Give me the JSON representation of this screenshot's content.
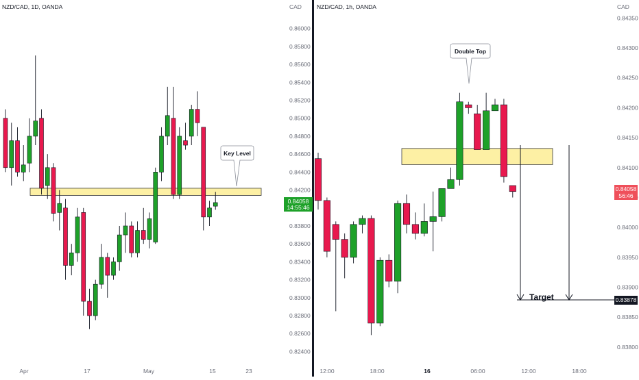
{
  "left": {
    "title": "NZD/CAD, 1D, OANDA",
    "currency": "CAD",
    "price_tag": "0.84058",
    "countdown": "14:55:46",
    "callout": "Key Level",
    "time_labels": [
      "Apr",
      "17",
      "May",
      "15",
      "23"
    ]
  },
  "right": {
    "title": "NZD/CAD, 1h, OANDA",
    "currency": "CAD",
    "price_tag": "0.84058",
    "countdown": "56:46",
    "callout": "Double Top",
    "target_label": "Target",
    "target_value": "0.83878",
    "time_labels": [
      "12:00",
      "18:00",
      "16",
      "06:00",
      "12:00",
      "18:00"
    ]
  },
  "colors": {
    "bull": "#1ea129",
    "bear": "#e8194e",
    "zone": "#fdf0a4",
    "zone_border": "#3b3b3b",
    "tag_left": "#1ea129",
    "tag_right": "#ef4f5a"
  },
  "chart_data": [
    {
      "type": "candlestick",
      "title": "NZD/CAD, 1D, OANDA",
      "ylabel": "CAD",
      "y_ticks": [
        "0.86000",
        "0.85800",
        "0.85600",
        "0.85400",
        "0.85200",
        "0.85000",
        "0.84800",
        "0.84600",
        "0.84400",
        "0.84200",
        "0.84000",
        "0.83800",
        "0.83600",
        "0.83400",
        "0.83200",
        "0.83000",
        "0.82800",
        "0.82600",
        "0.82400"
      ],
      "ylim": [
        0.8235,
        0.8615
      ],
      "x_labels": [
        "Apr",
        "17",
        "May",
        "15",
        "23"
      ],
      "zone": [
        0.8414,
        0.8422
      ],
      "last_price": 0.84058,
      "candles": [
        {
          "o": 0.85,
          "h": 0.851,
          "l": 0.844,
          "c": 0.8445
        },
        {
          "o": 0.8445,
          "h": 0.8495,
          "l": 0.8425,
          "c": 0.8475
        },
        {
          "o": 0.8475,
          "h": 0.849,
          "l": 0.8435,
          "c": 0.844
        },
        {
          "o": 0.844,
          "h": 0.847,
          "l": 0.843,
          "c": 0.8448
        },
        {
          "o": 0.845,
          "h": 0.85,
          "l": 0.844,
          "c": 0.848
        },
        {
          "o": 0.848,
          "h": 0.857,
          "l": 0.847,
          "c": 0.8497
        },
        {
          "o": 0.85,
          "h": 0.851,
          "l": 0.8415,
          "c": 0.8422
        },
        {
          "o": 0.8425,
          "h": 0.846,
          "l": 0.841,
          "c": 0.8445
        },
        {
          "o": 0.8445,
          "h": 0.845,
          "l": 0.8385,
          "c": 0.8394
        },
        {
          "o": 0.8395,
          "h": 0.842,
          "l": 0.8375,
          "c": 0.8405
        },
        {
          "o": 0.84,
          "h": 0.841,
          "l": 0.832,
          "c": 0.8336
        },
        {
          "o": 0.8336,
          "h": 0.836,
          "l": 0.8325,
          "c": 0.835
        },
        {
          "o": 0.835,
          "h": 0.84,
          "l": 0.834,
          "c": 0.839
        },
        {
          "o": 0.8395,
          "h": 0.84,
          "l": 0.828,
          "c": 0.8296
        },
        {
          "o": 0.8296,
          "h": 0.831,
          "l": 0.8265,
          "c": 0.828
        },
        {
          "o": 0.828,
          "h": 0.832,
          "l": 0.8275,
          "c": 0.8315
        },
        {
          "o": 0.8315,
          "h": 0.836,
          "l": 0.831,
          "c": 0.8345
        },
        {
          "o": 0.8345,
          "h": 0.835,
          "l": 0.83,
          "c": 0.8325
        },
        {
          "o": 0.8325,
          "h": 0.8345,
          "l": 0.832,
          "c": 0.834
        },
        {
          "o": 0.834,
          "h": 0.838,
          "l": 0.833,
          "c": 0.837
        },
        {
          "o": 0.837,
          "h": 0.8395,
          "l": 0.835,
          "c": 0.838
        },
        {
          "o": 0.838,
          "h": 0.8385,
          "l": 0.8345,
          "c": 0.835
        },
        {
          "o": 0.835,
          "h": 0.8385,
          "l": 0.8345,
          "c": 0.8375
        },
        {
          "o": 0.8375,
          "h": 0.84,
          "l": 0.836,
          "c": 0.8365
        },
        {
          "o": 0.8365,
          "h": 0.8395,
          "l": 0.8355,
          "c": 0.8388
        },
        {
          "o": 0.8362,
          "h": 0.8445,
          "l": 0.836,
          "c": 0.844
        },
        {
          "o": 0.844,
          "h": 0.849,
          "l": 0.843,
          "c": 0.848
        },
        {
          "o": 0.848,
          "h": 0.8535,
          "l": 0.847,
          "c": 0.8503
        },
        {
          "o": 0.85,
          "h": 0.8535,
          "l": 0.841,
          "c": 0.8415
        },
        {
          "o": 0.8415,
          "h": 0.849,
          "l": 0.841,
          "c": 0.848
        },
        {
          "o": 0.8475,
          "h": 0.8495,
          "l": 0.8465,
          "c": 0.847
        },
        {
          "o": 0.848,
          "h": 0.8515,
          "l": 0.847,
          "c": 0.851
        },
        {
          "o": 0.851,
          "h": 0.853,
          "l": 0.848,
          "c": 0.8495
        },
        {
          "o": 0.849,
          "h": 0.849,
          "l": 0.8375,
          "c": 0.839
        },
        {
          "o": 0.839,
          "h": 0.8408,
          "l": 0.838,
          "c": 0.84
        },
        {
          "o": 0.8402,
          "h": 0.8418,
          "l": 0.8398,
          "c": 0.8406
        }
      ]
    },
    {
      "type": "candlestick",
      "title": "NZD/CAD, 1h, OANDA",
      "ylabel": "CAD",
      "y_ticks": [
        "0.84350",
        "0.84300",
        "0.84250",
        "0.84200",
        "0.84150",
        "0.84100",
        "0.84050",
        "0.84000",
        "0.83950",
        "0.83900",
        "0.83850",
        "0.83800"
      ],
      "ylim": [
        0.83785,
        0.84355
      ],
      "x_labels": [
        "12:00",
        "18:00",
        "16",
        "06:00",
        "12:00",
        "18:00"
      ],
      "zone": [
        0.84105,
        0.84132
      ],
      "last_price": 0.84058,
      "target": 0.83878,
      "candles": [
        {
          "o": 0.84115,
          "h": 0.84125,
          "l": 0.8403,
          "c": 0.84045
        },
        {
          "o": 0.84045,
          "h": 0.8405,
          "l": 0.8395,
          "c": 0.8396
        },
        {
          "o": 0.84005,
          "h": 0.8401,
          "l": 0.8386,
          "c": 0.8398
        },
        {
          "o": 0.8398,
          "h": 0.8399,
          "l": 0.83915,
          "c": 0.8395
        },
        {
          "o": 0.8395,
          "h": 0.8401,
          "l": 0.8394,
          "c": 0.84005
        },
        {
          "o": 0.84005,
          "h": 0.8402,
          "l": 0.8399,
          "c": 0.84015
        },
        {
          "o": 0.84015,
          "h": 0.8402,
          "l": 0.8382,
          "c": 0.8384
        },
        {
          "o": 0.8384,
          "h": 0.8395,
          "l": 0.83835,
          "c": 0.83945
        },
        {
          "o": 0.83945,
          "h": 0.83955,
          "l": 0.839,
          "c": 0.8391
        },
        {
          "o": 0.8391,
          "h": 0.84045,
          "l": 0.8389,
          "c": 0.8404
        },
        {
          "o": 0.8404,
          "h": 0.84055,
          "l": 0.8399,
          "c": 0.84005
        },
        {
          "o": 0.84005,
          "h": 0.84025,
          "l": 0.8398,
          "c": 0.8399
        },
        {
          "o": 0.8399,
          "h": 0.8404,
          "l": 0.83985,
          "c": 0.8401
        },
        {
          "o": 0.8401,
          "h": 0.8406,
          "l": 0.8396,
          "c": 0.84018
        },
        {
          "o": 0.84018,
          "h": 0.84065,
          "l": 0.8401,
          "c": 0.84065
        },
        {
          "o": 0.84065,
          "h": 0.841,
          "l": 0.8407,
          "c": 0.8408
        },
        {
          "o": 0.8408,
          "h": 0.84225,
          "l": 0.8407,
          "c": 0.8421
        },
        {
          "o": 0.84205,
          "h": 0.8421,
          "l": 0.8419,
          "c": 0.842
        },
        {
          "o": 0.8419,
          "h": 0.84205,
          "l": 0.8413,
          "c": 0.8413
        },
        {
          "o": 0.8413,
          "h": 0.84225,
          "l": 0.8413,
          "c": 0.84195
        },
        {
          "o": 0.84195,
          "h": 0.84215,
          "l": 0.84195,
          "c": 0.84205
        },
        {
          "o": 0.84205,
          "h": 0.84215,
          "l": 0.84075,
          "c": 0.84085
        },
        {
          "o": 0.8407,
          "h": 0.8407,
          "l": 0.8405,
          "c": 0.8406
        }
      ]
    }
  ]
}
